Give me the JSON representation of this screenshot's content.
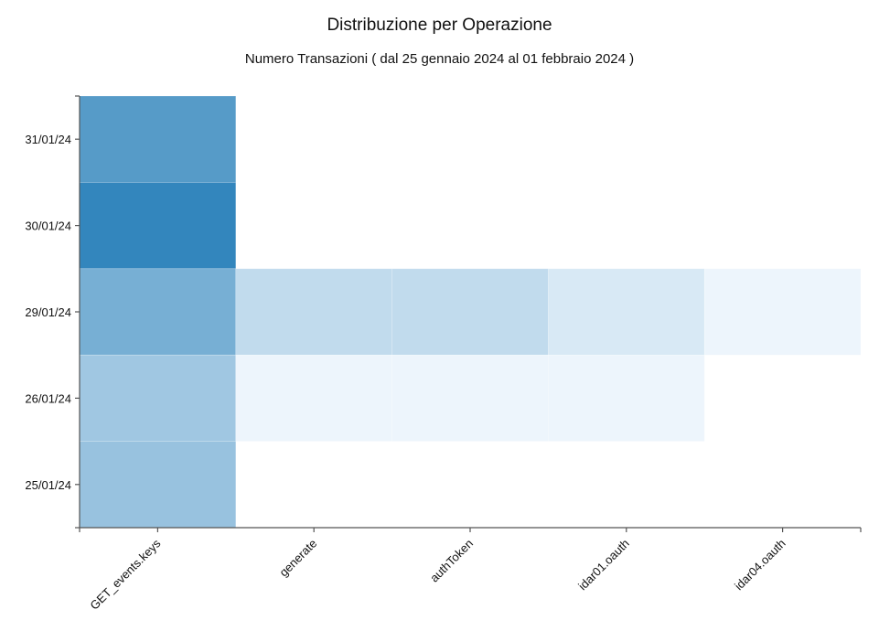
{
  "chart_data": {
    "type": "heatmap",
    "title": "Distribuzione per Operazione",
    "subtitle": "Numero Transazioni ( dal 25 gennaio 2024 al 01 febbraio 2024 )",
    "x_categories": [
      "GET_events.keys",
      "generate",
      "authToken",
      "idar01.oauth",
      "idar04.oauth"
    ],
    "y_categories": [
      "25/01/24",
      "26/01/24",
      "29/01/24",
      "30/01/24",
      "31/01/24"
    ],
    "cells": [
      {
        "x": "GET_events.keys",
        "y": "31/01/24",
        "value": 0.78
      },
      {
        "x": "GET_events.keys",
        "y": "30/01/24",
        "value": 0.95
      },
      {
        "x": "GET_events.keys",
        "y": "29/01/24",
        "value": 0.62
      },
      {
        "x": "GET_events.keys",
        "y": "26/01/24",
        "value": 0.42
      },
      {
        "x": "GET_events.keys",
        "y": "25/01/24",
        "value": 0.46
      },
      {
        "x": "generate",
        "y": "29/01/24",
        "value": 0.26
      },
      {
        "x": "generate",
        "y": "26/01/24",
        "value": 0.05
      },
      {
        "x": "authToken",
        "y": "29/01/24",
        "value": 0.26
      },
      {
        "x": "authToken",
        "y": "26/01/24",
        "value": 0.05
      },
      {
        "x": "idar01.oauth",
        "y": "29/01/24",
        "value": 0.15
      },
      {
        "x": "idar01.oauth",
        "y": "26/01/24",
        "value": 0.05
      },
      {
        "x": "idar04.oauth",
        "y": "29/01/24",
        "value": 0.05
      }
    ],
    "color_scale": {
      "low": "#f7fbff",
      "high": "#2980b9"
    },
    "grid": false,
    "legend": "none"
  }
}
